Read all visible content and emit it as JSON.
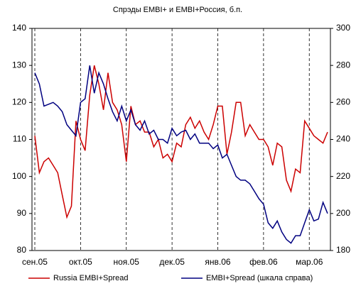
{
  "chart_data": {
    "type": "line",
    "title": "Спрэды EMBI+ и EMBI+Россия, б.п.",
    "categories": [
      "сен.05",
      null,
      null,
      null,
      null,
      null,
      null,
      null,
      null,
      null,
      "окт.05",
      null,
      null,
      null,
      null,
      null,
      null,
      null,
      null,
      null,
      "ноя.05",
      null,
      null,
      null,
      null,
      null,
      null,
      null,
      null,
      null,
      "дек.05",
      null,
      null,
      null,
      null,
      null,
      null,
      null,
      null,
      null,
      "янв.06",
      null,
      null,
      null,
      null,
      null,
      null,
      null,
      null,
      null,
      "фев.06",
      null,
      null,
      null,
      null,
      null,
      null,
      null,
      null,
      null,
      "мар.06",
      null,
      null,
      null,
      null
    ],
    "series": [
      {
        "name": "Russia EMBI+Spread",
        "color": "#cc0000",
        "values": [
          111,
          101,
          104,
          105,
          103,
          101,
          95,
          89,
          92,
          115,
          110,
          107,
          122,
          130,
          125,
          118,
          128,
          120,
          118,
          114,
          104,
          119,
          114,
          115,
          112,
          112,
          108,
          110,
          105,
          106,
          104,
          109,
          108,
          114,
          116,
          113,
          115,
          112,
          110,
          114,
          119,
          119,
          106,
          112,
          120,
          120,
          111,
          114,
          112,
          110,
          110,
          108,
          103,
          109,
          108,
          99,
          96,
          102,
          101,
          115,
          113,
          111,
          110,
          109,
          112
        ]
      },
      {
        "name": "EMBI+Spread (шкала справа)",
        "color": "#000080",
        "axis": "y2",
        "values": [
          276,
          270,
          258,
          259,
          260,
          258,
          255,
          248,
          245,
          242,
          260,
          262,
          280,
          265,
          276,
          270,
          262,
          255,
          250,
          258,
          250,
          256,
          248,
          245,
          250,
          243,
          245,
          240,
          240,
          238,
          246,
          242,
          244,
          245,
          240,
          243,
          238,
          238,
          238,
          235,
          237,
          230,
          232,
          226,
          220,
          218,
          218,
          216,
          212,
          208,
          205,
          195,
          192,
          196,
          190,
          186,
          184,
          188,
          188,
          195,
          202,
          196,
          197,
          206,
          200
        ]
      }
    ],
    "ylim": [
      80,
      140
    ],
    "yticks": [
      80,
      90,
      100,
      110,
      120,
      130,
      140
    ],
    "y2lim": [
      180,
      300
    ],
    "y2ticks": [
      180,
      200,
      220,
      240,
      260,
      280,
      300
    ]
  }
}
